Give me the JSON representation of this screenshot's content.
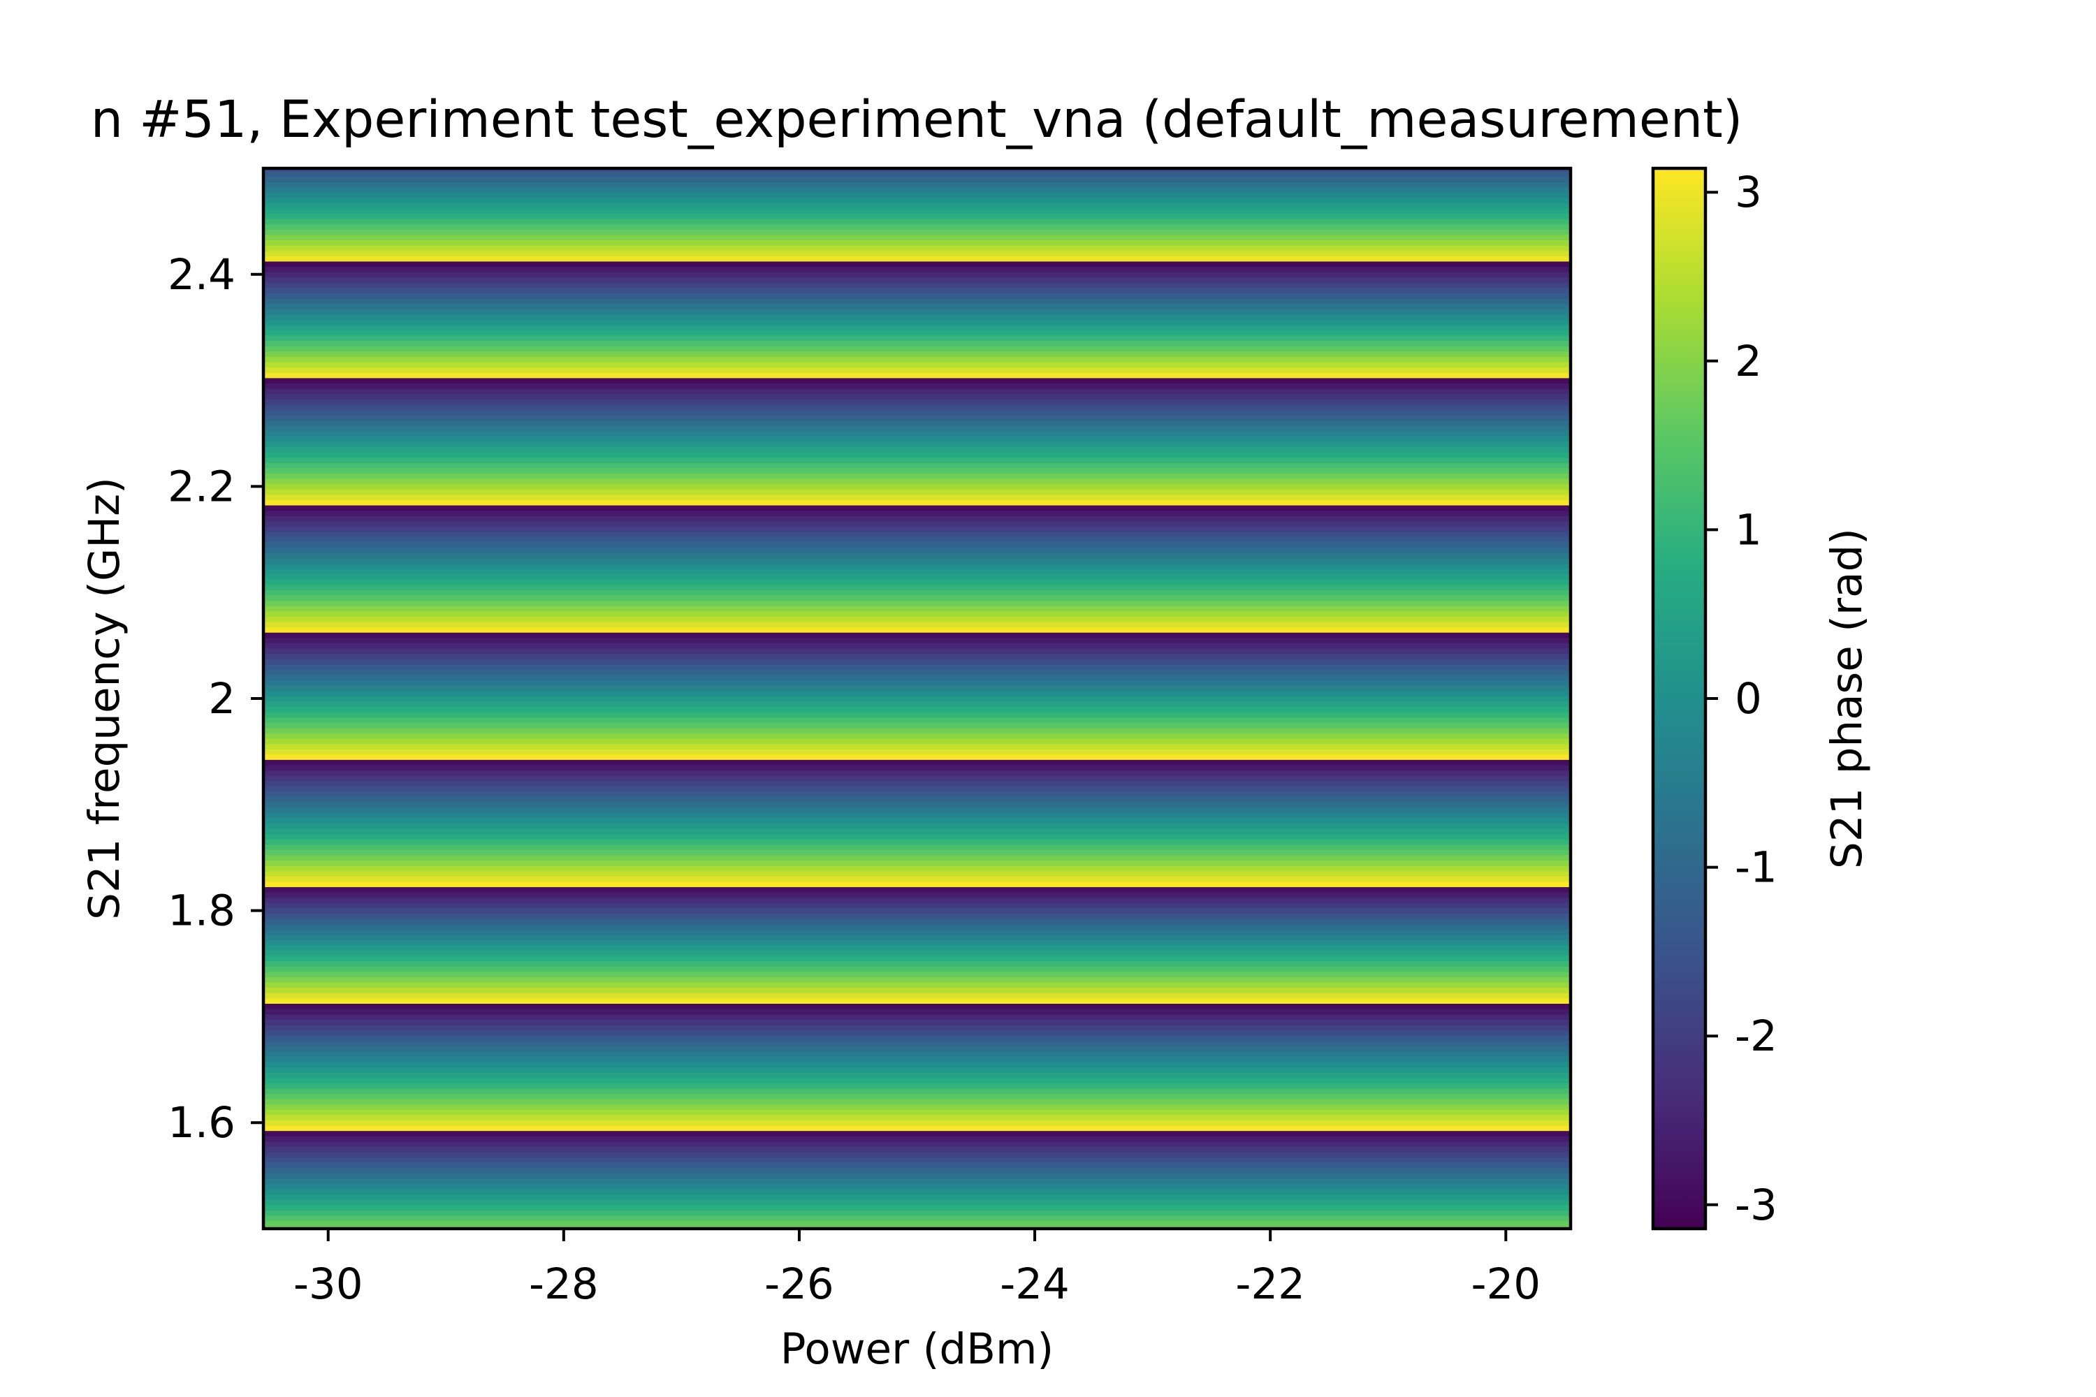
{
  "chart_data": {
    "type": "heatmap",
    "title": "n #51, Experiment test_experiment_vna (default_measurement)",
    "xlabel": "Power (dBm)",
    "ylabel": "S21 frequency (GHz)",
    "colorbar_label": "S21 phase (rad)",
    "colormap": "viridis",
    "xlim": [
      -30.55,
      -19.45
    ],
    "ylim": [
      1.5,
      2.5
    ],
    "clim": [
      -3.1416,
      3.1416
    ],
    "x_ticks": [
      -30,
      -28,
      -26,
      -24,
      -22,
      -20
    ],
    "x_tick_labels": [
      "-30",
      "-28",
      "-26",
      "-24",
      "-22",
      "-20"
    ],
    "y_ticks": [
      1.6,
      1.8,
      2.0,
      2.2,
      2.4
    ],
    "y_tick_labels": [
      "1.6",
      "1.8",
      "2",
      "2.2",
      "2.4"
    ],
    "c_ticks": [
      3,
      2,
      1,
      0,
      -1,
      -2,
      -3
    ],
    "c_tick_labels": [
      "3",
      "2",
      "1",
      "0",
      "-1",
      "-2",
      "-3"
    ],
    "x": [
      -30,
      -29,
      -28,
      -27,
      -26,
      -25,
      -24,
      -23,
      -22,
      -21,
      -20
    ],
    "frequency_points": 201,
    "phase_wraps_at_ghz": [
      1.5942,
      1.7136,
      1.8247,
      1.9442,
      2.0633,
      2.1838,
      2.3033,
      2.4125
    ],
    "phase_model": "phase decreases by 2π across each band between wraps; constant across power",
    "grid": false,
    "legend": "none"
  },
  "colors": {
    "background": "#ffffff",
    "axes": "#000000"
  }
}
